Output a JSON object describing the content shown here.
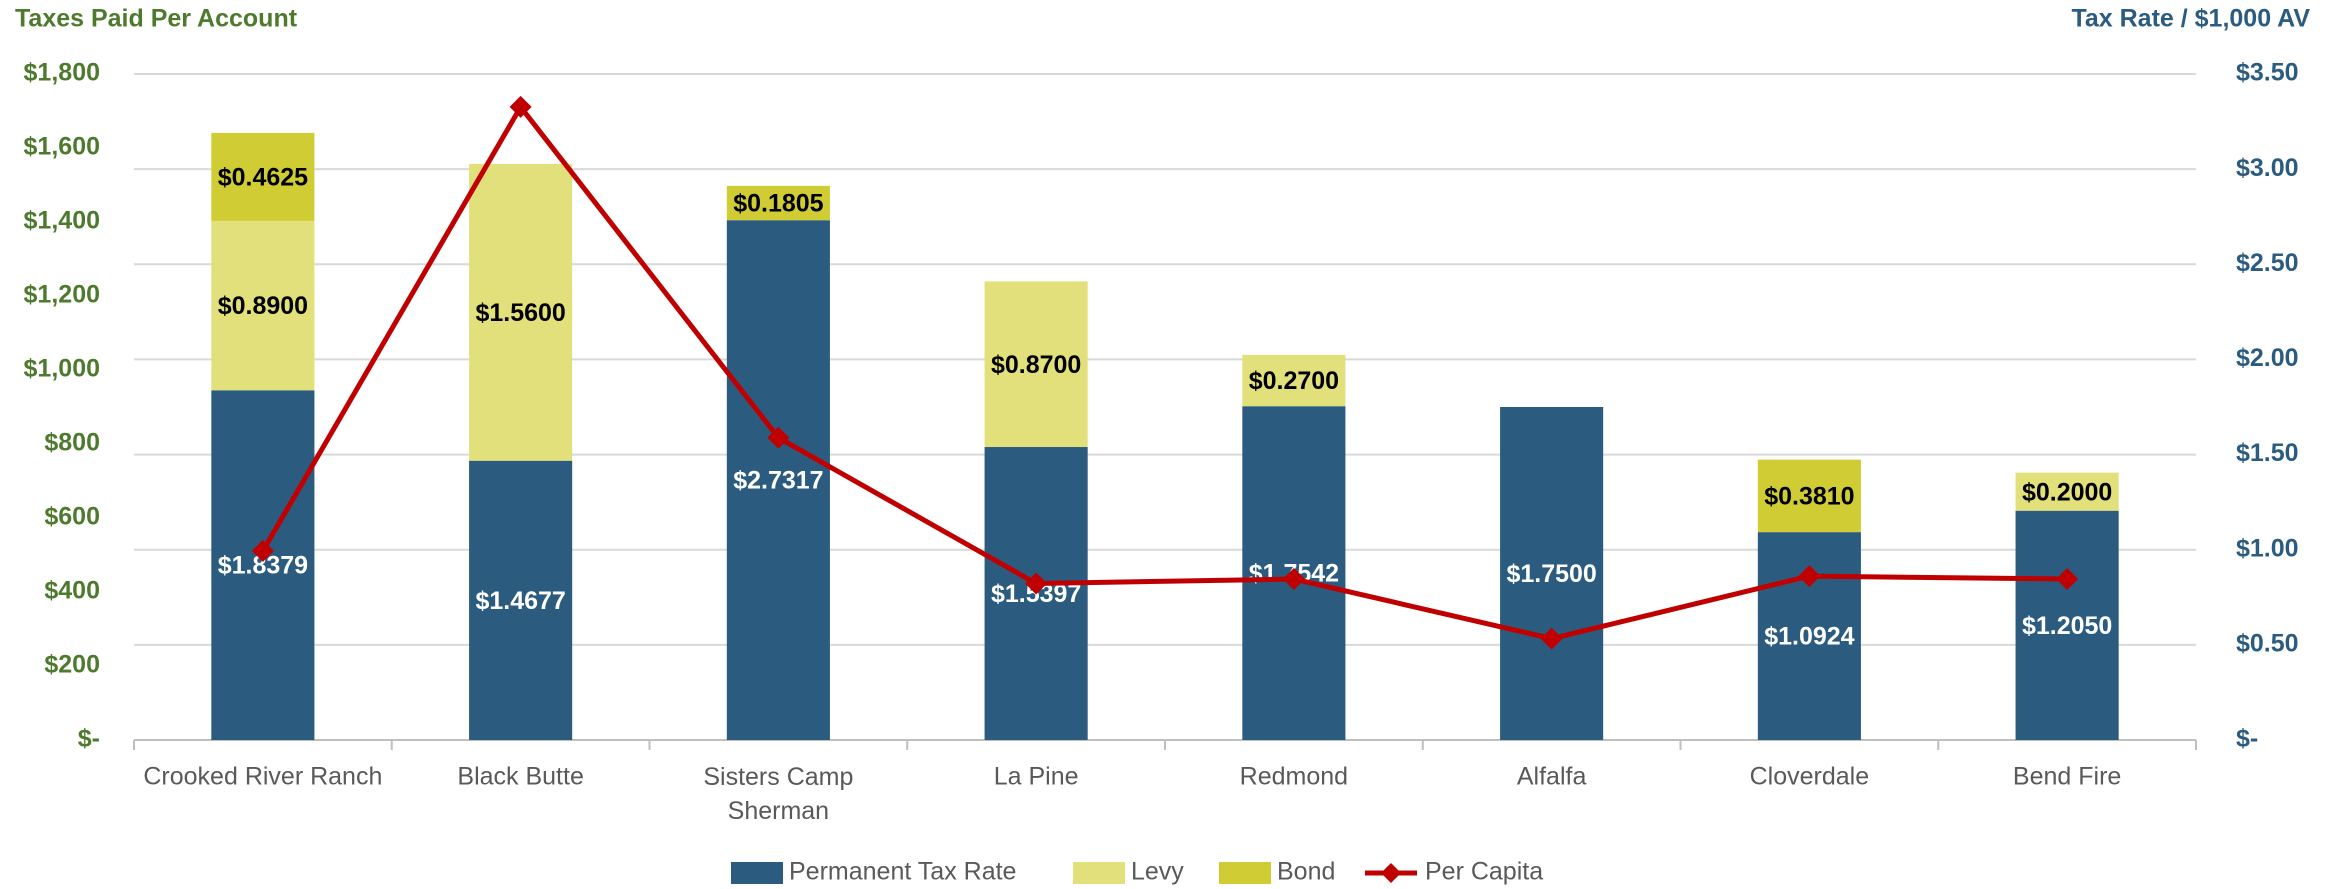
{
  "chart_data": {
    "type": "bar",
    "title": "Taxes Paid Per Account",
    "y2_title": "Tax Rate / $1,000 AV",
    "categories": [
      "Crooked River Ranch",
      "Black Butte",
      "Sisters Camp\nSherman",
      "La Pine",
      "Redmond",
      "Alfalfa",
      "Cloverdale",
      "Bend Fire"
    ],
    "series": [
      {
        "name": "Permanent Tax Rate",
        "color": "#2b5c80",
        "axis": "y2",
        "label_color": "#ffffff",
        "values": [
          1.8379,
          1.4677,
          2.7317,
          1.5397,
          1.7542,
          1.75,
          1.0924,
          1.205
        ],
        "value_labels": [
          "$1.8379",
          "$1.4677",
          "$2.7317",
          "$1.5397",
          "$1.7542",
          "$1.7500",
          "$1.0924",
          "$1.2050"
        ]
      },
      {
        "name": "Levy",
        "color": "#e2e07a",
        "axis": "y2",
        "label_color": "#000000",
        "values": [
          0.89,
          1.56,
          null,
          0.87,
          0.27,
          null,
          null,
          0.2
        ],
        "value_labels": [
          "$0.8900",
          "$1.5600",
          null,
          "$0.8700",
          "$0.2700",
          null,
          null,
          "$0.2000"
        ]
      },
      {
        "name": "Bond",
        "color": "#d0cc33",
        "axis": "y2",
        "label_color": "#000000",
        "values": [
          0.4625,
          null,
          0.1805,
          null,
          null,
          null,
          0.381,
          null
        ],
        "value_labels": [
          "$0.4625",
          null,
          "$0.1805",
          null,
          null,
          null,
          "$0.3810",
          null
        ]
      },
      {
        "name": "Per Capita",
        "color": "#c00000",
        "axis": "y",
        "type": "line",
        "values": [
          511,
          1711,
          817,
          423,
          435,
          274,
          443,
          435
        ]
      }
    ],
    "ylim": [
      0,
      1800
    ],
    "yticks": [
      {
        "value": 0,
        "label": "$-"
      },
      {
        "value": 200,
        "label": "$200"
      },
      {
        "value": 400,
        "label": "$400"
      },
      {
        "value": 600,
        "label": "$600"
      },
      {
        "value": 800,
        "label": "$800"
      },
      {
        "value": 1000,
        "label": "$1,000"
      },
      {
        "value": 1200,
        "label": "$1,200"
      },
      {
        "value": 1400,
        "label": "$1,400"
      },
      {
        "value": 1600,
        "label": "$1,600"
      },
      {
        "value": 1800,
        "label": "$1,800"
      }
    ],
    "y2lim": [
      0,
      3.5
    ],
    "y2ticks": [
      {
        "value": 0,
        "label": "$-"
      },
      {
        "value": 0.5,
        "label": "$0.50"
      },
      {
        "value": 1,
        "label": "$1.00"
      },
      {
        "value": 1.5,
        "label": "$1.50"
      },
      {
        "value": 2,
        "label": "$2.00"
      },
      {
        "value": 2.5,
        "label": "$2.50"
      },
      {
        "value": 3,
        "label": "$3.00"
      },
      {
        "value": 3.5,
        "label": "$3.50"
      }
    ],
    "y_color": "#4e7a2e",
    "y2_color": "#2b5c80",
    "grid": true,
    "legend": "bottom"
  }
}
